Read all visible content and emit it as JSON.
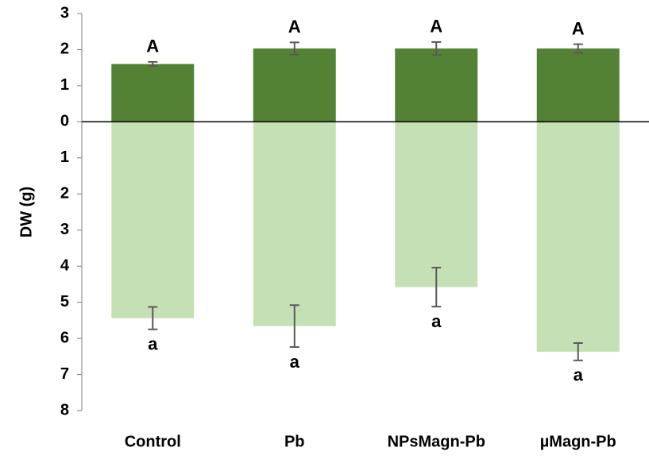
{
  "chart_data": {
    "type": "bar",
    "ylabel": "DW (g)",
    "categories": [
      "Control",
      "Pb",
      "NPsMagn-Pb",
      "µMagn-Pb"
    ],
    "series": [
      {
        "color": "#548235",
        "values": [
          1.6,
          2.03,
          2.03,
          2.03
        ],
        "errors": [
          0.06,
          0.17,
          0.18,
          0.12
        ],
        "letters": [
          "A",
          "A",
          "A",
          "A"
        ]
      },
      {
        "color": "#c5e0b4",
        "values": [
          -5.44,
          -5.66,
          -4.58,
          -6.37
        ],
        "errors": [
          0.31,
          0.58,
          0.54,
          0.24
        ],
        "letters": [
          "a",
          "a",
          "a",
          "a"
        ]
      }
    ],
    "ylim": [
      -8,
      3
    ],
    "yticks": [
      3,
      2,
      1,
      0,
      {
        "value": -1,
        "label": "1"
      },
      {
        "value": -2,
        "label": "2"
      },
      {
        "value": -3,
        "label": "3"
      },
      {
        "value": -4,
        "label": "4"
      },
      {
        "value": -5,
        "label": "5"
      },
      {
        "value": -6,
        "label": "6"
      },
      {
        "value": -7,
        "label": "7"
      },
      {
        "value": -8,
        "label": "8"
      }
    ],
    "grid": false
  }
}
